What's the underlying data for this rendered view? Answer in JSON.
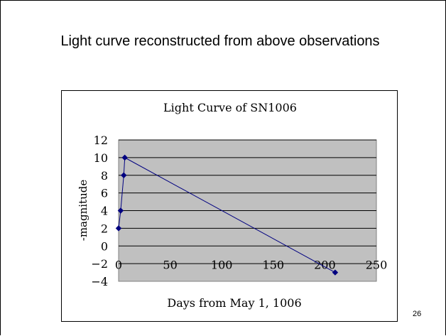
{
  "slide": {
    "title": "Light curve reconstructed from above observations",
    "page_number": "26"
  },
  "chart_data": {
    "type": "scatter",
    "title": "Light Curve of SN1006",
    "xlabel": "Days from May 1, 1006",
    "ylabel": "-magnitude",
    "xlim": [
      0,
      250
    ],
    "ylim": [
      -4,
      12
    ],
    "x_ticks": [
      0,
      50,
      100,
      150,
      200,
      250
    ],
    "y_ticks": [
      -4,
      -2,
      0,
      2,
      4,
      6,
      8,
      10,
      12
    ],
    "grid": "horizontal",
    "legend": "none",
    "plot_background": "#c0c0c0",
    "series": [
      {
        "color": "#000080",
        "markers": "diamond",
        "x": [
          0,
          2,
          5,
          6,
          210
        ],
        "y": [
          2,
          4,
          8,
          10,
          -3
        ]
      }
    ]
  }
}
